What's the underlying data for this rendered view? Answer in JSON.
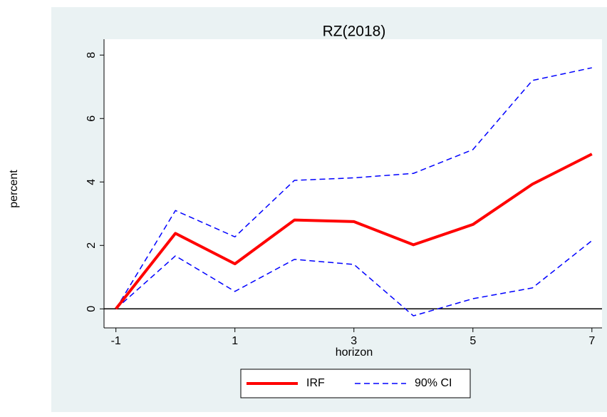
{
  "chart_data": {
    "type": "line",
    "title": "RZ(2018)",
    "x_label": "horizon",
    "y_label": "percent",
    "x": [
      -1,
      0,
      1,
      2,
      3,
      4,
      5,
      6,
      7
    ],
    "series": [
      {
        "name": "IRF",
        "color": "#ff0000",
        "dash": "solid",
        "width": 4,
        "values": [
          0,
          2.38,
          1.42,
          2.8,
          2.75,
          2.02,
          2.66,
          3.93,
          4.88
        ]
      },
      {
        "name": "90% CI",
        "color": "#0000ff",
        "dash": "dashed",
        "width": 1.5,
        "values": [
          0,
          3.1,
          2.27,
          4.05,
          4.13,
          4.27,
          5.02,
          7.2,
          7.6
        ]
      },
      {
        "color": "#0000ff",
        "dash": "dashed",
        "width": 1.5,
        "values": [
          0,
          1.67,
          0.55,
          1.56,
          1.4,
          -0.22,
          0.32,
          0.66,
          2.15
        ]
      }
    ],
    "xlim": [
      -1.2,
      7.17
    ],
    "xticks": [
      -1,
      1,
      3,
      5,
      7
    ],
    "ylim": [
      -0.6,
      8.5
    ],
    "yticks": [
      0,
      2,
      4,
      6,
      8
    ],
    "yline": 0,
    "grid": false,
    "legend": "bottom"
  }
}
